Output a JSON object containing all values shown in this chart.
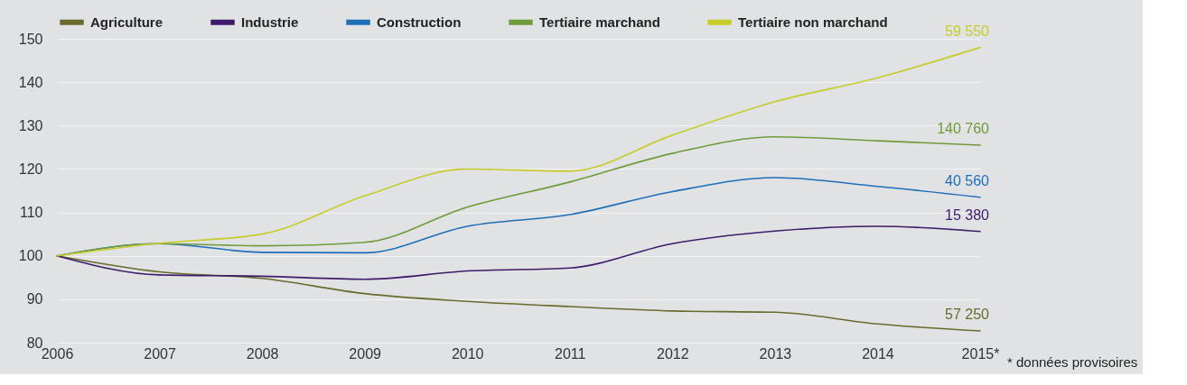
{
  "chart_data": {
    "type": "line",
    "categories": [
      "2006",
      "2007",
      "2008",
      "2009",
      "2010",
      "2011",
      "2012",
      "2013",
      "2014",
      "2015*"
    ],
    "series": [
      {
        "name": "Agriculture",
        "color": "#6b6a2e",
        "values": [
          100,
          96.3,
          94.8,
          91.3,
          89.5,
          88.3,
          87.3,
          87.0,
          84.3,
          82.7
        ]
      },
      {
        "name": "Industrie",
        "color": "#3f1c6b",
        "values": [
          100,
          95.6,
          95.3,
          94.6,
          96.5,
          97.2,
          102.8,
          105.7,
          106.8,
          105.6
        ]
      },
      {
        "name": "Construction",
        "color": "#1f6fb8",
        "values": [
          100,
          102.8,
          100.8,
          100.7,
          106.8,
          109.5,
          114.8,
          118,
          116,
          113.5
        ]
      },
      {
        "name": "Tertiaire marchand",
        "color": "#6e9c3a",
        "values": [
          100,
          102.8,
          102.3,
          103.1,
          111.2,
          117,
          123.6,
          127.4,
          126.5,
          125.5
        ]
      },
      {
        "name": "Tertiaire non marchand",
        "color": "#c8cc2a",
        "values": [
          100,
          102.9,
          105,
          113.8,
          120,
          119.5,
          127.8,
          135.5,
          141,
          148
        ]
      }
    ],
    "ylim": [
      80,
      150
    ],
    "yticks": [
      80,
      90,
      100,
      110,
      120,
      130,
      140,
      150
    ],
    "grid": "y",
    "legend": "top",
    "marker": "none",
    "line_style": "solid",
    "annotations": [
      "59 550",
      "140 760",
      "40 560",
      "15 380",
      "57 250",
      "* données provisoires"
    ]
  }
}
